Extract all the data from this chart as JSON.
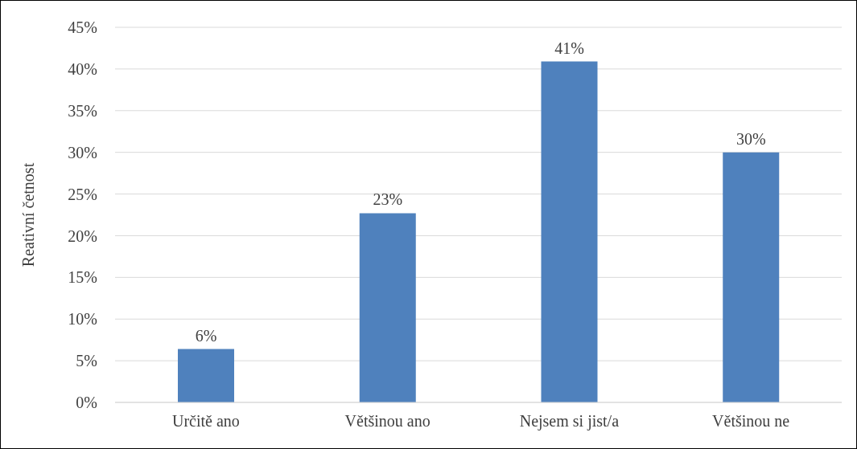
{
  "chart_data": {
    "type": "bar",
    "ylabel": "Reativní četnost",
    "categories": [
      "Určitě ano",
      "Většinou ano",
      "Nejsem si jist/a",
      "Většinou ne"
    ],
    "values": [
      6.4,
      22.7,
      40.9,
      30.0
    ],
    "color": "#4f81bd",
    "value_labels": [
      "6%",
      "23%",
      "41%",
      "30%"
    ],
    "ylim": [
      0,
      45
    ],
    "yticks": [
      {
        "value": 0,
        "label": "0%"
      },
      {
        "value": 5,
        "label": "5%"
      },
      {
        "value": 10,
        "label": "10%"
      },
      {
        "value": 15,
        "label": "15%"
      },
      {
        "value": 20,
        "label": "20%"
      },
      {
        "value": 25,
        "label": "25%"
      },
      {
        "value": 30,
        "label": "30%"
      },
      {
        "value": 35,
        "label": "35%"
      },
      {
        "value": 40,
        "label": "40%"
      },
      {
        "value": 45,
        "label": "45%"
      }
    ],
    "grid": "y",
    "legend": false
  }
}
